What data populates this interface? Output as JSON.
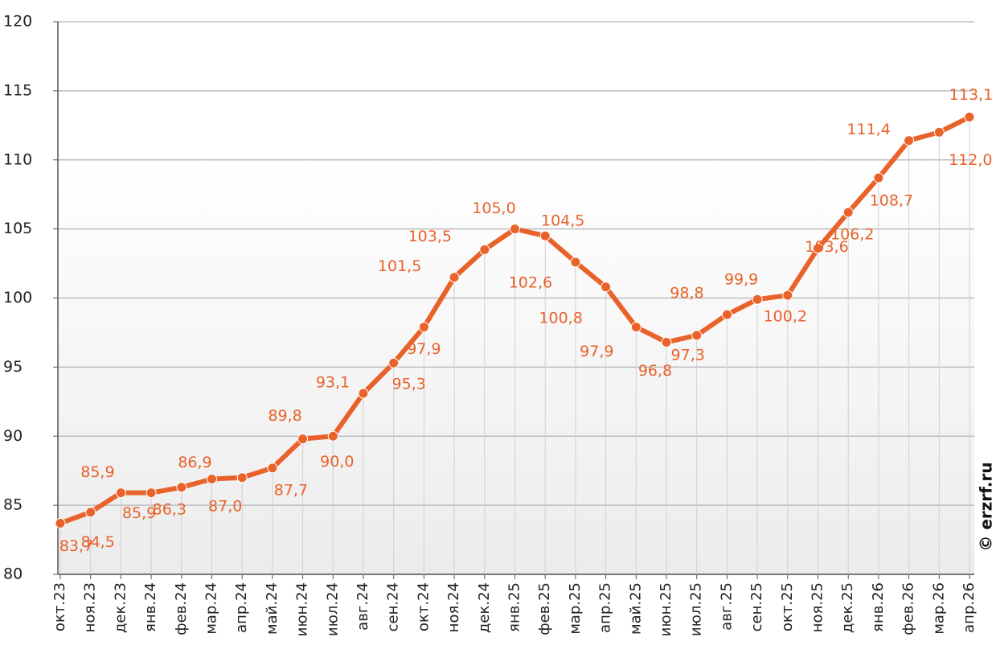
{
  "chart_data": {
    "type": "line",
    "categories": [
      "окт.23",
      "ноя.23",
      "дек.23",
      "янв.24",
      "фев.24",
      "мар.24",
      "апр.24",
      "май.24",
      "июн.24",
      "июл.24",
      "авг.24",
      "сен.24",
      "окт.24",
      "ноя.24",
      "дек.24",
      "янв.25",
      "фев.25",
      "мар.25",
      "апр.25",
      "май.25",
      "июн.25",
      "июл.25",
      "авг.25",
      "сен.25",
      "окт.25",
      "ноя.25",
      "дек.25",
      "янв.26",
      "фев.26",
      "мар.26",
      "апр.26"
    ],
    "series": [
      {
        "color": "#e9622a",
        "values": [
          83.7,
          84.5,
          85.9,
          85.9,
          86.3,
          86.9,
          87.0,
          87.7,
          89.8,
          90.0,
          93.1,
          95.3,
          97.9,
          101.5,
          103.5,
          105.0,
          104.5,
          102.6,
          100.8,
          97.9,
          96.8,
          97.3,
          98.8,
          99.9,
          100.2,
          103.6,
          106.2,
          108.7,
          111.4,
          112.0,
          113.1
        ],
        "value_labels": [
          "83,7",
          "84,5",
          "85,9",
          "85,9",
          "86,3",
          "86,9",
          "87,0",
          "87,7",
          "89,8",
          "90,0",
          "93,1",
          "95,3",
          "97,9",
          "101,5",
          "103,5",
          "105,0",
          "104,5",
          "102,6",
          "100,8",
          "97,9",
          "96,8",
          "97,3",
          "98,8",
          "99,9",
          "100,2",
          "103,6",
          "106,2",
          "108,7",
          "111,4",
          "112,0",
          "113,1"
        ]
      }
    ],
    "ylim": [
      80,
      120
    ],
    "yticks": [
      80,
      85,
      90,
      95,
      100,
      105,
      110,
      115,
      120
    ],
    "grid": true,
    "source": "© erzrf.ru"
  }
}
